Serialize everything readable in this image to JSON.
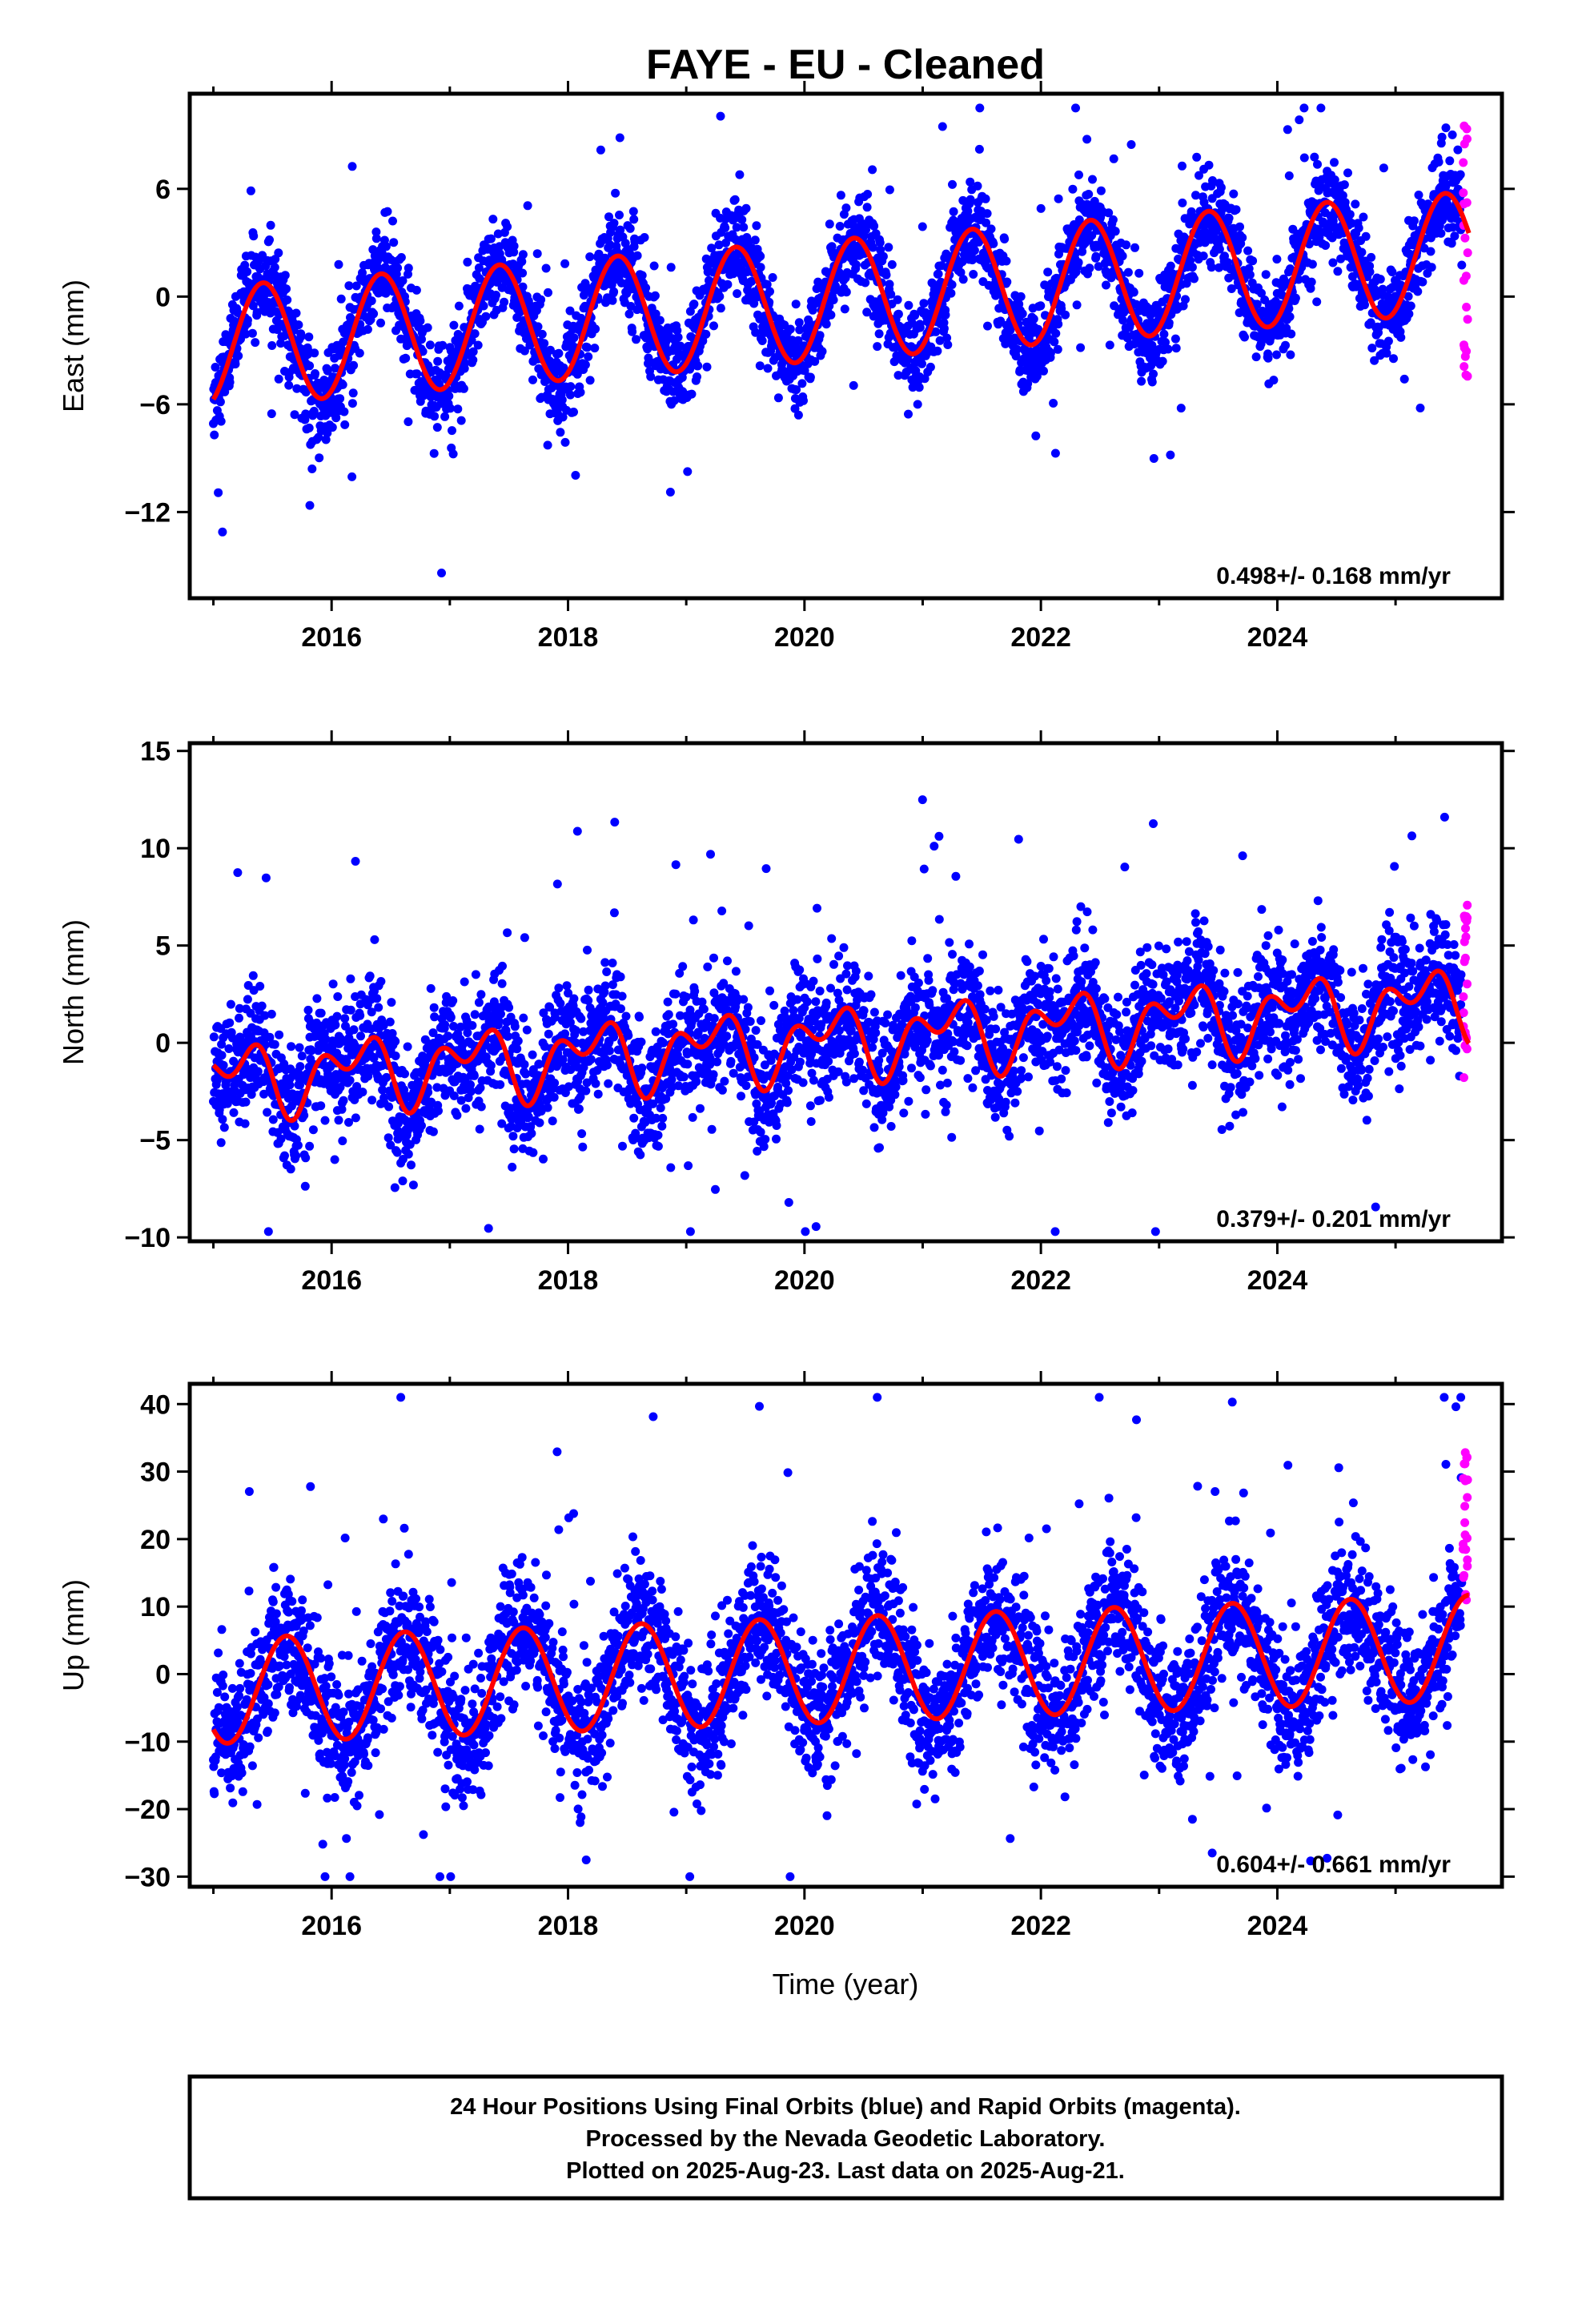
{
  "chart_data": {
    "type": "scatter",
    "title": "FAYE  - EU - Cleaned",
    "xlabel": "Time (year)",
    "xlim": [
      2014.8,
      2025.9
    ],
    "xticks": [
      2016,
      2018,
      2020,
      2022,
      2024
    ],
    "colors": {
      "final": "#0000ff",
      "rapid": "#ff00ff",
      "model": "#ff0000"
    },
    "panels": [
      {
        "id": "east",
        "ylabel": "East (mm)",
        "ylim": [
          -16.8,
          11.3
        ],
        "yticks": [
          6,
          0,
          -6,
          -12
        ],
        "ytick_labels": [
          "6",
          "0",
          "−6",
          "−12"
        ],
        "rate": "0.498+/- 0.168 mm/yr",
        "trend": {
          "slope": 0.498,
          "intercept_2020": -0.3
        },
        "annual": {
          "amp": 3.35,
          "peak": 0.42
        },
        "semiannual": {
          "amp": 0.0,
          "phase": 0.0
        },
        "noise": 1.3,
        "outlier_range": [
          -15.5,
          10.5
        ],
        "rapid_range": [
          -4.6,
          10.5
        ]
      },
      {
        "id": "north",
        "ylabel": "North (mm)",
        "ylim": [
          -10.2,
          15.4
        ],
        "yticks": [
          15,
          10,
          5,
          0,
          -5,
          -10
        ],
        "ytick_labels": [
          "15",
          "10",
          "5",
          "0",
          "−5",
          "−10"
        ],
        "rate": "0.379+/- 0.201 mm/yr",
        "trend": {
          "slope": 0.379,
          "intercept_2020": 0.0
        },
        "annual": {
          "amp": 1.3,
          "peak": 0.2
        },
        "semiannual": {
          "amp": 1.1,
          "phase": 0.4
        },
        "noise": 1.6,
        "outlier_range": [
          -9.7,
          14.8
        ],
        "rapid_range": [
          -1.9,
          7.6
        ]
      },
      {
        "id": "up",
        "ylabel": "Up (mm)",
        "ylim": [
          -31.5,
          43
        ],
        "yticks": [
          40,
          30,
          20,
          10,
          0,
          -10,
          -20,
          -30
        ],
        "ytick_labels": [
          "40",
          "30",
          "20",
          "10",
          "0",
          "−10",
          "−20",
          "−30"
        ],
        "rate": "0.604+/- 0.661 mm/yr",
        "trend": {
          "slope": 0.604,
          "intercept_2020": 0.5
        },
        "annual": {
          "amp": 7.8,
          "peak": 0.62
        },
        "semiannual": {
          "amp": 0.0,
          "phase": 0.0
        },
        "noise": 5.0,
        "outlier_range": [
          -30,
          41
        ],
        "rapid_range": [
          9,
          33
        ]
      }
    ]
  },
  "footer": {
    "line1": "24 Hour Positions Using Final Orbits (blue) and Rapid Orbits (magenta).",
    "line2": "Processed by the Nevada Geodetic Laboratory.",
    "line3": "Plotted on 2025-Aug-23. Last data on 2025-Aug-21."
  }
}
